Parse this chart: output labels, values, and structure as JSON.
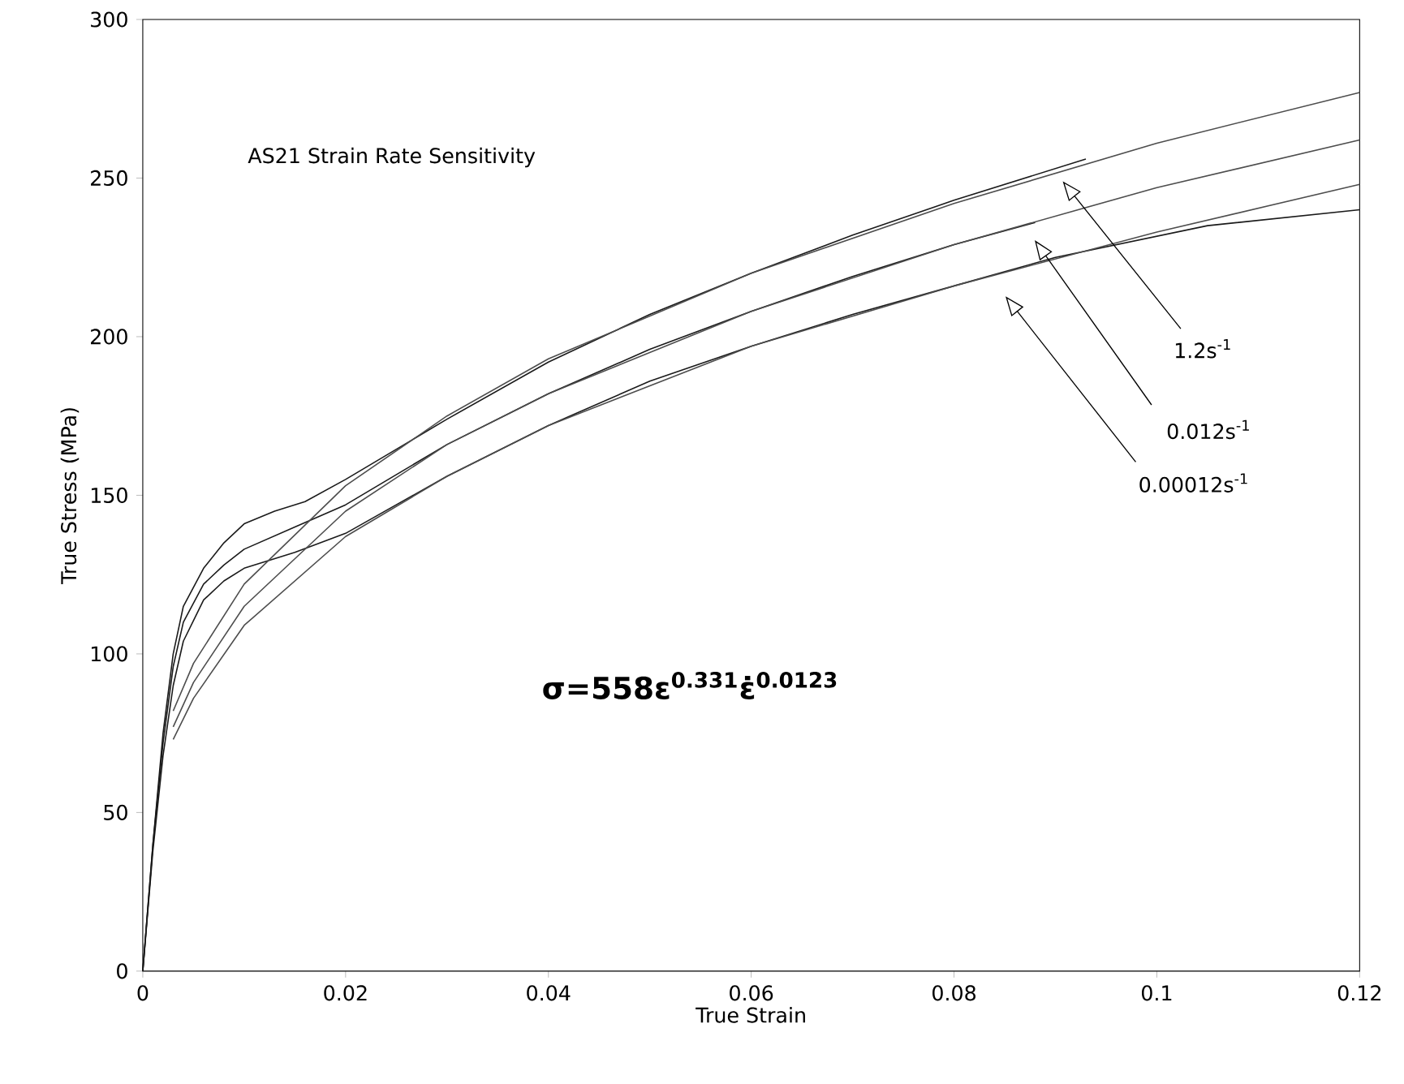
{
  "chart_data": {
    "type": "line",
    "title": "AS21 Strain Rate Sensitivity",
    "xlabel": "True Strain",
    "ylabel": "True Stress (MPa)",
    "xlim": [
      0,
      0.12
    ],
    "xticks": [
      0,
      0.02,
      0.04,
      0.06,
      0.08,
      0.1,
      0.12
    ],
    "ylim": [
      0,
      300
    ],
    "yticks": [
      0,
      50,
      100,
      150,
      200,
      250,
      300
    ],
    "grid": false,
    "marker": "none",
    "line_style": "solid",
    "series": [
      {
        "x": [
          0,
          0.001,
          0.002,
          0.003,
          0.004,
          0.006,
          0.008,
          0.01,
          0.013,
          0.016,
          0.02,
          0.03,
          0.04,
          0.05,
          0.06,
          0.07,
          0.08,
          0.093
        ],
        "values": [
          0,
          40,
          75,
          100,
          115,
          127,
          135,
          141,
          145,
          148,
          155,
          174,
          192,
          207,
          220,
          232,
          243,
          256
        ],
        "color": "#1a1a1a"
      },
      {
        "x": [
          0,
          0.001,
          0.002,
          0.003,
          0.004,
          0.006,
          0.008,
          0.01,
          0.015,
          0.02,
          0.03,
          0.04,
          0.05,
          0.06,
          0.07,
          0.08,
          0.088
        ],
        "values": [
          0,
          40,
          72,
          96,
          110,
          122,
          128,
          133,
          140,
          147,
          166,
          182,
          196,
          208,
          219,
          229,
          236
        ],
        "color": "#1a1a1a"
      },
      {
        "x": [
          0,
          0.001,
          0.002,
          0.003,
          0.004,
          0.006,
          0.008,
          0.01,
          0.015,
          0.02,
          0.03,
          0.04,
          0.05,
          0.06,
          0.07,
          0.08,
          0.09,
          0.105,
          0.12
        ],
        "values": [
          0,
          38,
          68,
          90,
          104,
          117,
          123,
          127,
          132,
          138,
          156,
          172,
          186,
          197,
          207,
          216,
          225,
          235,
          240
        ],
        "color": "#1a1a1a"
      },
      {
        "x": [
          0.003,
          0.005,
          0.01,
          0.02,
          0.03,
          0.04,
          0.06,
          0.08,
          0.1,
          0.12
        ],
        "values": [
          82,
          97,
          122,
          153,
          175,
          193,
          220,
          242,
          261,
          277
        ],
        "color": "#4d4d4d"
      },
      {
        "x": [
          0.003,
          0.005,
          0.01,
          0.02,
          0.03,
          0.04,
          0.06,
          0.08,
          0.1,
          0.12
        ],
        "values": [
          77,
          91,
          115,
          145,
          166,
          182,
          208,
          229,
          247,
          262
        ],
        "color": "#4d4d4d"
      },
      {
        "x": [
          0.003,
          0.005,
          0.01,
          0.02,
          0.03,
          0.04,
          0.06,
          0.08,
          0.1,
          0.12
        ],
        "values": [
          73,
          86,
          109,
          137,
          156,
          172,
          197,
          216,
          233,
          248
        ],
        "color": "#4d4d4d"
      }
    ],
    "annotations": [
      "σ=558ε$^{0.331}$ε̇$^{0.0123}$",
      "1.2s$^{-1}$",
      "0.012s$^{-1}$",
      "0.00012s$^{-1}$"
    ]
  }
}
